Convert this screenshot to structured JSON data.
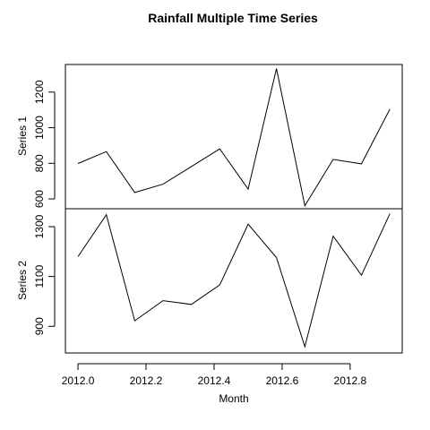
{
  "chart_data": {
    "type": "line",
    "title": "Rainfall Multiple Time Series",
    "xlabel": "Month",
    "x": [
      2012.0,
      2012.0833,
      2012.1667,
      2012.25,
      2012.3333,
      2012.4167,
      2012.5,
      2012.5833,
      2012.6667,
      2012.75,
      2012.8333,
      2012.9167
    ],
    "xlim": [
      2011.963,
      2012.953
    ],
    "x_ticks": [
      2012.0,
      2012.2,
      2012.4,
      2012.6,
      2012.8
    ],
    "x_tick_labels": [
      "2012.0",
      "2012.2",
      "2012.4",
      "2012.6",
      "2012.8"
    ],
    "grid": false,
    "series": [
      {
        "name": "Series 1",
        "ylabel": "Series 1",
        "values": [
          799,
          866,
          636,
          683,
          782,
          881,
          655,
          1332,
          562,
          822,
          797,
          1104
        ],
        "ylim": [
          545,
          1355
        ],
        "y_ticks": [
          600,
          800,
          1000,
          1200
        ],
        "y_tick_labels": [
          "600",
          "800",
          "1000",
          "1200"
        ]
      },
      {
        "name": "Series 2",
        "ylabel": "Series 2",
        "values": [
          1180,
          1348,
          922,
          1003,
          988,
          1066,
          1310,
          1176,
          818,
          1262,
          1105,
          1352
        ],
        "ylim": [
          793,
          1372
        ],
        "y_ticks": [
          900,
          1100,
          1300
        ],
        "y_tick_labels": [
          "900",
          "1100",
          "1300"
        ]
      }
    ]
  }
}
